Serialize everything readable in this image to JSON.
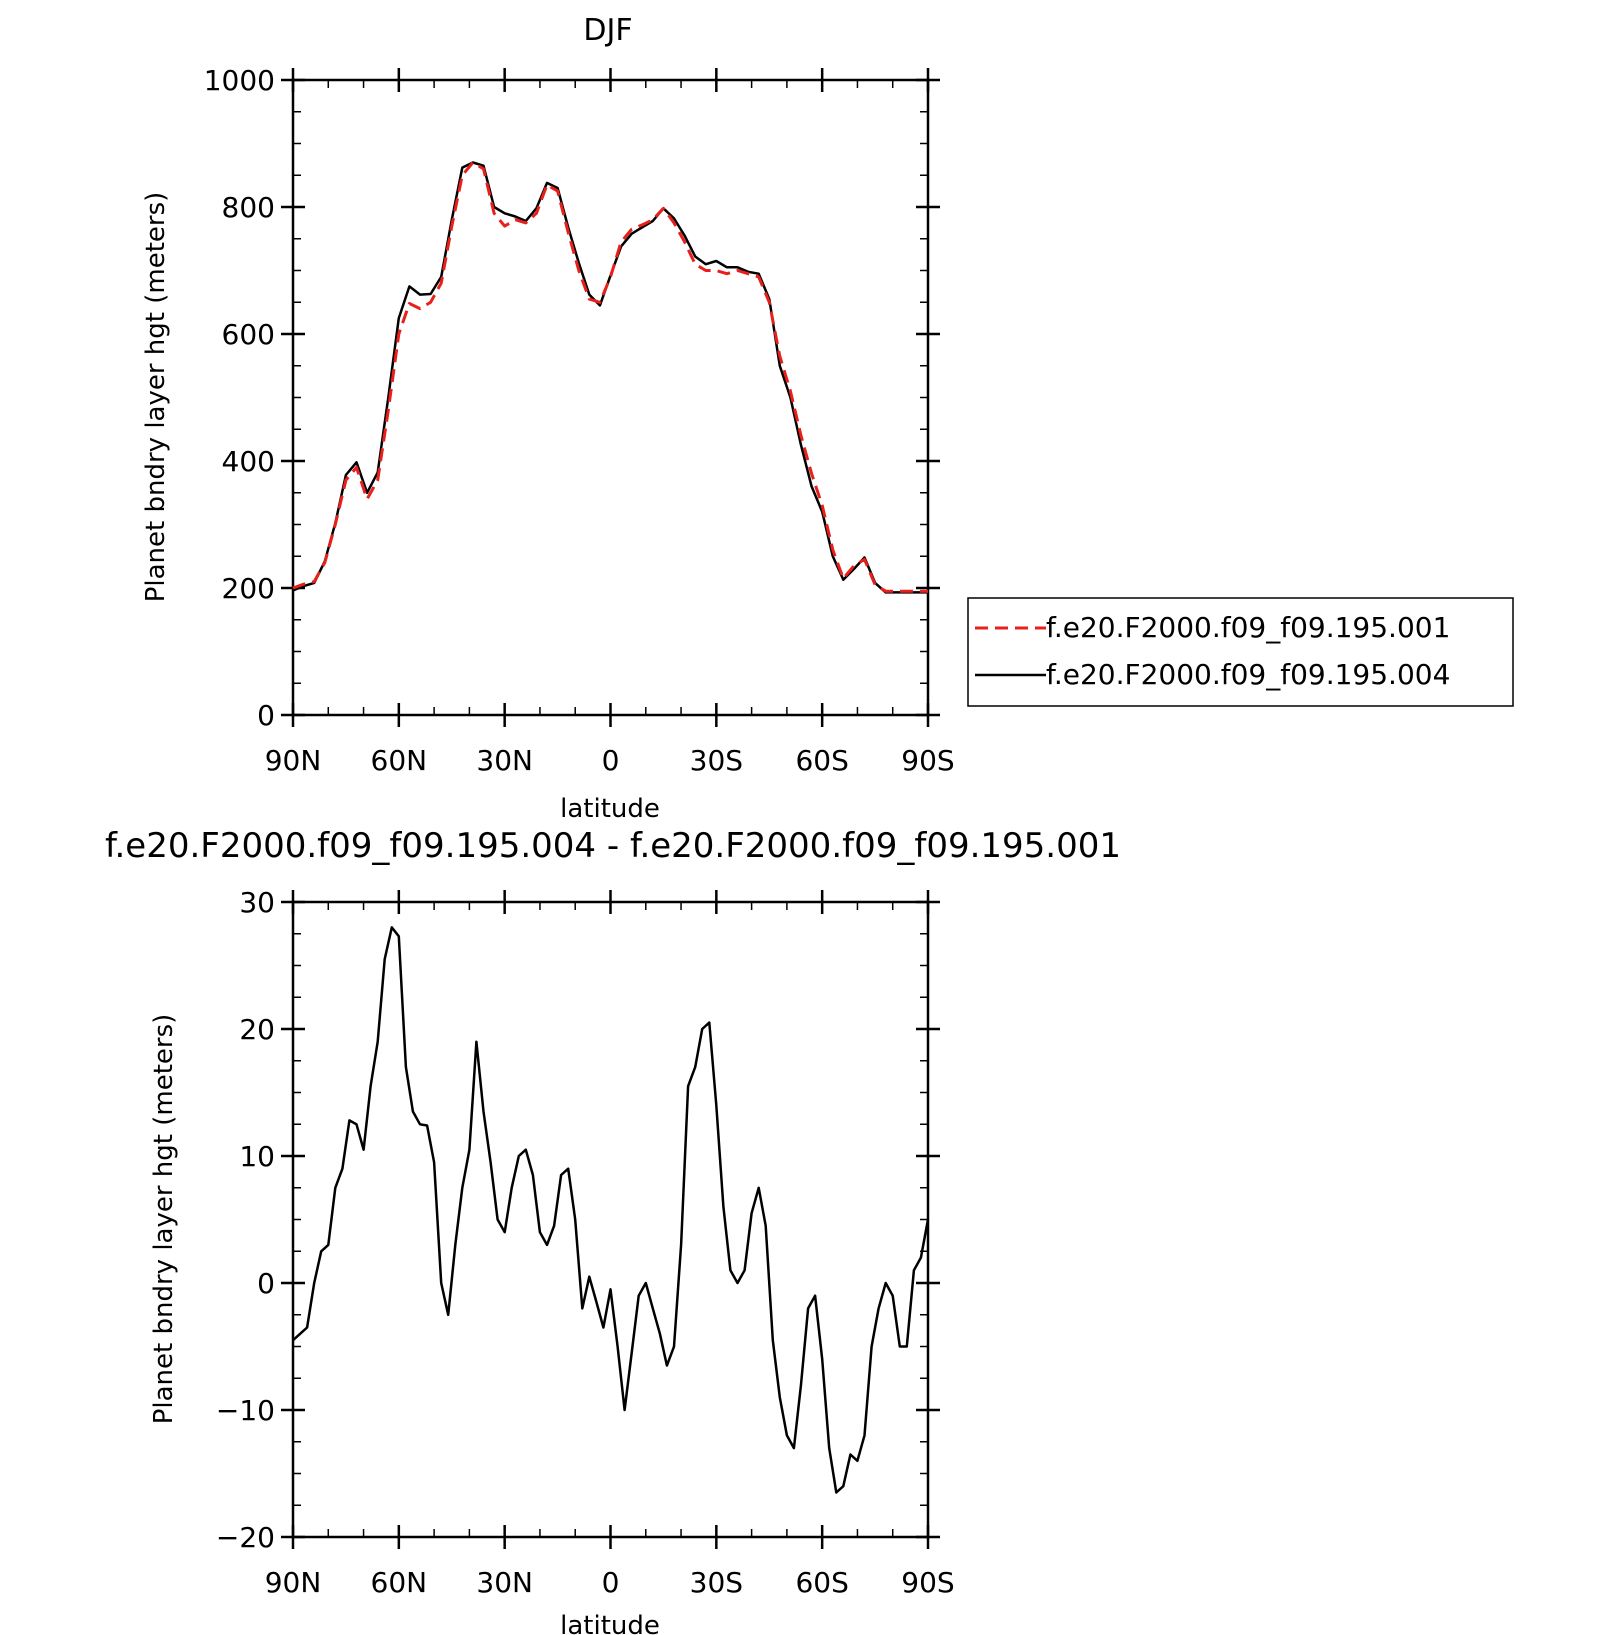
{
  "chart_data": [
    {
      "type": "line",
      "title": "DJF",
      "xlabel": "latitude",
      "ylabel": "Planet bndry layer hgt (meters)",
      "x_range": [
        90,
        -90
      ],
      "x_ticks": [
        90,
        60,
        30,
        0,
        -30,
        -60,
        -90
      ],
      "x_tick_labels": [
        "90N",
        "60N",
        "30N",
        "0",
        "30S",
        "60S",
        "90S"
      ],
      "ylim": [
        0,
        1000
      ],
      "y_ticks": [
        0,
        200,
        400,
        600,
        800,
        1000
      ],
      "y_tick_labels": [
        "0",
        "200",
        "400",
        "600",
        "800",
        "1000"
      ],
      "grid": false,
      "legend_position": "right",
      "x": [
        90,
        87,
        84,
        81,
        78,
        75,
        72,
        69,
        66,
        63,
        60,
        57,
        54,
        51,
        48,
        45,
        42,
        39,
        36,
        33,
        30,
        27,
        24,
        21,
        18,
        15,
        12,
        9,
        6,
        3,
        0,
        -3,
        -6,
        -9,
        -12,
        -15,
        -18,
        -21,
        -24,
        -27,
        -30,
        -33,
        -36,
        -39,
        -42,
        -45,
        -48,
        -51,
        -54,
        -57,
        -60,
        -63,
        -66,
        -69,
        -72,
        -75,
        -78,
        -81,
        -84,
        -87,
        -90
      ],
      "series": [
        {
          "name": "f.e20.F2000.f09_f09.195.001",
          "color": "#e8201c",
          "dash": "dashed",
          "values": [
            200,
            206,
            210,
            240,
            300,
            370,
            390,
            340,
            370,
            480,
            600,
            648,
            640,
            650,
            680,
            770,
            850,
            870,
            860,
            790,
            770,
            780,
            775,
            790,
            835,
            825,
            760,
            700,
            655,
            650,
            690,
            745,
            765,
            772,
            780,
            798,
            775,
            745,
            710,
            700,
            700,
            695,
            700,
            695,
            690,
            650,
            565,
            510,
            440,
            380,
            330,
            260,
            215,
            235,
            245,
            205,
            195,
            195,
            195,
            195,
            195
          ]
        },
        {
          "name": "f.e20.F2000.f09_f09.195.004",
          "color": "#000000",
          "dash": "solid",
          "values": [
            196,
            203,
            208,
            242,
            302,
            378,
            398,
            350,
            382,
            500,
            625,
            675,
            662,
            663,
            690,
            780,
            862,
            870,
            865,
            800,
            790,
            785,
            778,
            798,
            838,
            830,
            768,
            712,
            662,
            645,
            692,
            738,
            758,
            768,
            778,
            798,
            782,
            755,
            722,
            710,
            715,
            705,
            705,
            698,
            695,
            655,
            550,
            500,
            425,
            360,
            320,
            250,
            213,
            230,
            248,
            208,
            193,
            193,
            193,
            193,
            193
          ]
        }
      ]
    },
    {
      "type": "line",
      "title": "f.e20.F2000.f09_f09.195.004 - f.e20.F2000.f09_f09.195.001",
      "xlabel": "latitude",
      "ylabel": "Planet bndry layer hgt (meters)",
      "x_range": [
        90,
        -90
      ],
      "x_ticks": [
        90,
        60,
        30,
        0,
        -30,
        -60,
        -90
      ],
      "x_tick_labels": [
        "90N",
        "60N",
        "30N",
        "0",
        "30S",
        "60S",
        "90S"
      ],
      "ylim": [
        -20,
        30
      ],
      "y_ticks": [
        -20,
        -10,
        0,
        10,
        20,
        30
      ],
      "y_tick_labels": [
        "−20",
        "−10",
        "0",
        "10",
        "20",
        "30"
      ],
      "grid": false,
      "x": [
        90,
        88,
        86,
        84,
        82,
        80,
        78,
        76,
        74,
        72,
        70,
        68,
        66,
        64,
        62,
        60,
        58,
        56,
        54,
        52,
        50,
        48,
        46,
        44,
        42,
        40,
        38,
        36,
        34,
        32,
        30,
        28,
        26,
        24,
        22,
        20,
        18,
        16,
        14,
        12,
        10,
        8,
        6,
        4,
        2,
        0,
        -2,
        -4,
        -6,
        -8,
        -10,
        -12,
        -14,
        -16,
        -18,
        -20,
        -22,
        -24,
        -26,
        -28,
        -30,
        -32,
        -34,
        -36,
        -38,
        -40,
        -42,
        -44,
        -46,
        -48,
        -50,
        -52,
        -54,
        -56,
        -58,
        -60,
        -62,
        -64,
        -66,
        -68,
        -70,
        -72,
        -74,
        -76,
        -78,
        -80,
        -82,
        -84,
        -86,
        -88,
        -90
      ],
      "series": [
        {
          "name": "",
          "color": "#000000",
          "dash": "solid",
          "values": [
            -4.5,
            -4.0,
            -3.5,
            0.0,
            2.5,
            3.0,
            7.5,
            9.0,
            12.8,
            12.5,
            10.5,
            15.5,
            19.0,
            25.5,
            28.0,
            27.3,
            17.0,
            13.5,
            12.5,
            12.4,
            9.5,
            0.0,
            -2.5,
            3.0,
            7.5,
            10.5,
            19.0,
            13.5,
            9.5,
            5.0,
            4.0,
            7.5,
            10.0,
            10.5,
            8.5,
            4.0,
            3.0,
            4.5,
            8.5,
            9.0,
            5.0,
            -2.0,
            0.5,
            -1.5,
            -3.5,
            -0.5,
            -5.0,
            -10.0,
            -5.5,
            -1.0,
            0.0,
            -2.0,
            -4.0,
            -6.5,
            -5.0,
            3.0,
            15.5,
            17.0,
            20.0,
            20.5,
            14.0,
            6.0,
            1.0,
            0.0,
            1.0,
            5.5,
            7.5,
            4.5,
            -4.5,
            -9.0,
            -12.0,
            -13.0,
            -8.0,
            -2.0,
            -1.0,
            -6.0,
            -13.0,
            -16.5,
            -16.0,
            -13.5,
            -14.0,
            -12.0,
            -5.0,
            -2.0,
            0.0,
            -1.0,
            -5.0,
            -5.0,
            1.0,
            2.0,
            5.0
          ]
        }
      ]
    }
  ]
}
